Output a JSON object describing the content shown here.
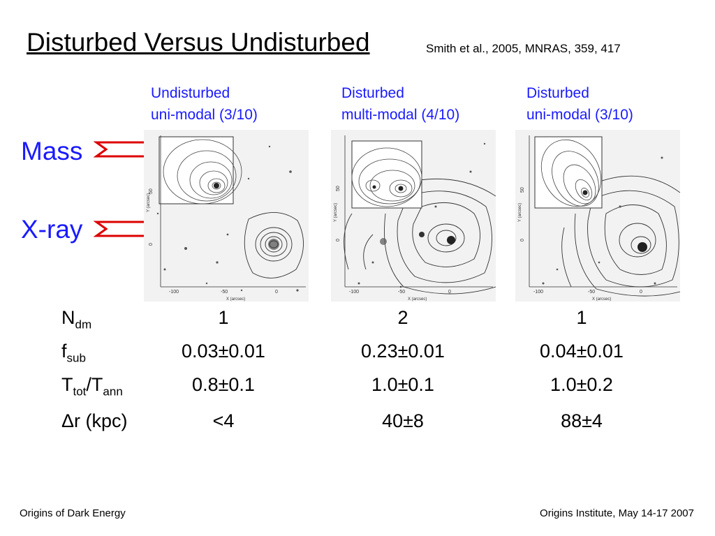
{
  "title": "Disturbed Versus Undisturbed",
  "reference": "Smith et al., 2005, MNRAS, 359, 417",
  "columns": [
    {
      "line1": "Undisturbed",
      "line2": "uni-modal (3/10)"
    },
    {
      "line1": "Disturbed",
      "line2": "multi-modal (4/10)"
    },
    {
      "line1": "Disturbed",
      "line2": "uni-modal (3/10)"
    }
  ],
  "rows": {
    "mass": "Mass",
    "xray": "X-ray"
  },
  "axes": {
    "x_label": "X (arcsec)",
    "y_label": "Y (arcsec)",
    "x_ticks": [
      "-100",
      "-50",
      "0"
    ],
    "y_ticks": [
      "0",
      "50"
    ]
  },
  "arrow_color": "#dd0000",
  "accent_color": "#1a1aff",
  "stats": {
    "labels": [
      {
        "base": "N",
        "sub": "dm"
      },
      {
        "base": "f",
        "sub": "sub"
      },
      {
        "base": "T",
        "sub": "tot",
        "mid": "/T",
        "sub2": "ann"
      },
      {
        "base": "Δr (kpc)"
      }
    ],
    "values": [
      [
        "1",
        "2",
        "1"
      ],
      [
        "0.03±0.01",
        "0.23±0.01",
        "0.04±0.01"
      ],
      [
        "0.8±0.1",
        "1.0±0.1",
        "1.0±0.2"
      ],
      [
        "<4",
        "40±8",
        "88±4"
      ]
    ]
  },
  "footer": {
    "left": "Origins of Dark Energy",
    "right": "Origins Institute, May 14-17 2007"
  }
}
